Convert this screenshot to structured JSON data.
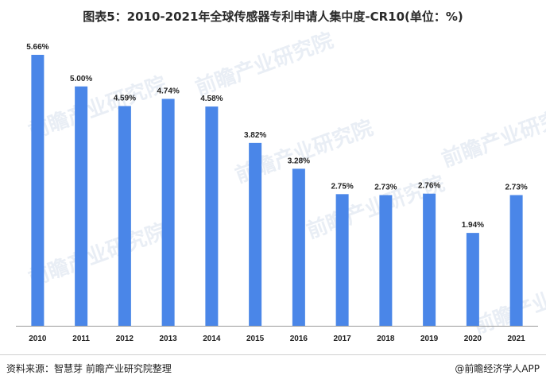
{
  "title": "图表5：2010-2021年全球传感器专利申请人集中度-CR10(单位：%)",
  "footer": {
    "source": "资料来源：智慧芽 前瞻产业研究院整理",
    "credit": "@前瞻经济学人APP"
  },
  "watermark": "前瞻产业研究院",
  "colors": {
    "bar": "#4a86e8"
  },
  "chart_data": {
    "type": "bar",
    "title": "图表5：2010-2021年全球传感器专利申请人集中度-CR10(单位：%)",
    "xlabel": "",
    "ylabel": "",
    "categories": [
      "2010",
      "2011",
      "2012",
      "2013",
      "2014",
      "2015",
      "2016",
      "2017",
      "2018",
      "2019",
      "2020",
      "2021"
    ],
    "values": [
      5.66,
      5.0,
      4.59,
      4.74,
      4.58,
      3.82,
      3.28,
      2.75,
      2.73,
      2.76,
      1.94,
      2.73
    ],
    "value_labels": [
      "5.66%",
      "5.00%",
      "4.59%",
      "4.74%",
      "4.58%",
      "3.82%",
      "3.28%",
      "2.75%",
      "2.73%",
      "2.76%",
      "1.94%",
      "2.73%"
    ],
    "ylim": [
      0,
      5.66
    ],
    "grid": false,
    "legend": "none"
  }
}
